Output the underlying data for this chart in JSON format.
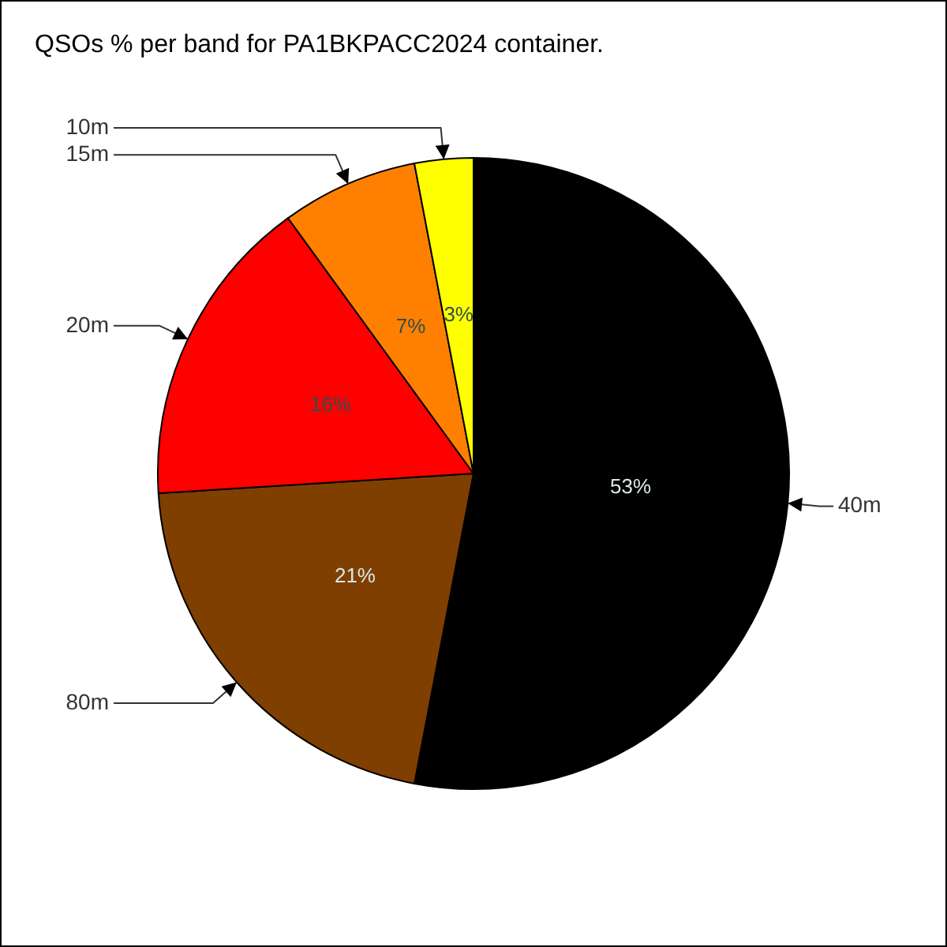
{
  "chart_data": {
    "type": "pie",
    "title": "QSOs % per band for PA1BKPACC2024 container.",
    "categories": [
      "40m",
      "80m",
      "20m",
      "15m",
      "10m"
    ],
    "values": [
      53,
      21,
      16,
      7,
      3
    ],
    "value_labels": [
      "53%",
      "21%",
      "16%",
      "7%",
      "3%"
    ],
    "colors": [
      "#000000",
      "#7f3f00",
      "#ff0000",
      "#ff8000",
      "#ffff00"
    ]
  }
}
